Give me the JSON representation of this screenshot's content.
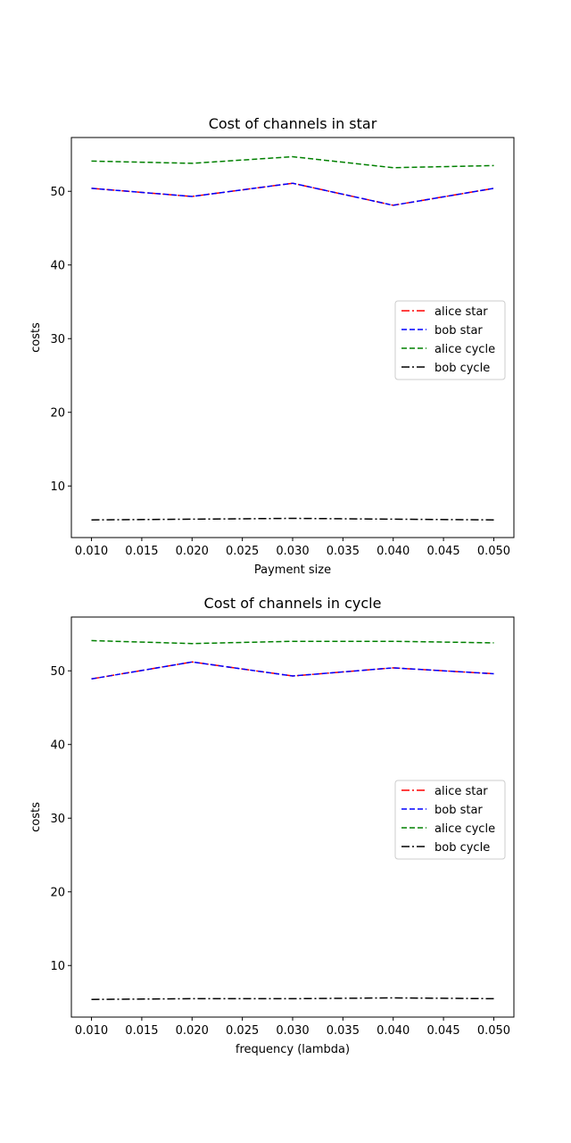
{
  "chart_data": [
    {
      "type": "line",
      "title": "Cost of channels in star",
      "xlabel": "Payment size",
      "ylabel": "costs",
      "x": [
        0.01,
        0.02,
        0.03,
        0.04,
        0.05
      ],
      "xlim": [
        0.008,
        0.052
      ],
      "ylim": [
        3.0,
        57.3
      ],
      "xticks": [
        "0.010",
        "0.015",
        "0.020",
        "0.025",
        "0.030",
        "0.035",
        "0.040",
        "0.045",
        "0.050"
      ],
      "xtick_values": [
        0.01,
        0.015,
        0.02,
        0.025,
        0.03,
        0.035,
        0.04,
        0.045,
        0.05
      ],
      "yticks": [
        "10",
        "20",
        "30",
        "40",
        "50"
      ],
      "ytick_values": [
        10,
        20,
        30,
        40,
        50
      ],
      "grid": false,
      "legend_position": "center-right",
      "series": [
        {
          "name": "alice star",
          "color": "#ff0000",
          "style": "dashdot",
          "values": [
            50.4,
            49.3,
            51.1,
            48.1,
            50.4
          ]
        },
        {
          "name": "bob star",
          "color": "#0000ff",
          "style": "dashed",
          "values": [
            50.4,
            49.3,
            51.1,
            48.1,
            50.4
          ]
        },
        {
          "name": "alice cycle",
          "color": "#008000",
          "style": "dashed",
          "values": [
            54.1,
            53.8,
            54.7,
            53.2,
            53.5
          ]
        },
        {
          "name": "bob cycle",
          "color": "#000000",
          "style": "dashdot",
          "values": [
            5.4,
            5.5,
            5.6,
            5.5,
            5.4
          ]
        }
      ]
    },
    {
      "type": "line",
      "title": "Cost of channels in cycle",
      "xlabel": "frequency (lambda)",
      "ylabel": "costs",
      "x": [
        0.01,
        0.02,
        0.03,
        0.04,
        0.05
      ],
      "xlim": [
        0.008,
        0.052
      ],
      "ylim": [
        3.0,
        57.3
      ],
      "xticks": [
        "0.010",
        "0.015",
        "0.020",
        "0.025",
        "0.030",
        "0.035",
        "0.040",
        "0.045",
        "0.050"
      ],
      "xtick_values": [
        0.01,
        0.015,
        0.02,
        0.025,
        0.03,
        0.035,
        0.04,
        0.045,
        0.05
      ],
      "yticks": [
        "10",
        "20",
        "30",
        "40",
        "50"
      ],
      "ytick_values": [
        10,
        20,
        30,
        40,
        50
      ],
      "grid": false,
      "legend_position": "center-right",
      "series": [
        {
          "name": "alice star",
          "color": "#ff0000",
          "style": "dashdot",
          "values": [
            48.9,
            51.2,
            49.3,
            50.4,
            49.6
          ]
        },
        {
          "name": "bob star",
          "color": "#0000ff",
          "style": "dashed",
          "values": [
            48.9,
            51.2,
            49.3,
            50.4,
            49.6
          ]
        },
        {
          "name": "alice cycle",
          "color": "#008000",
          "style": "dashed",
          "values": [
            54.1,
            53.7,
            54.0,
            54.0,
            53.8
          ]
        },
        {
          "name": "bob cycle",
          "color": "#000000",
          "style": "dashdot",
          "values": [
            5.4,
            5.5,
            5.5,
            5.6,
            5.5
          ]
        }
      ]
    }
  ]
}
